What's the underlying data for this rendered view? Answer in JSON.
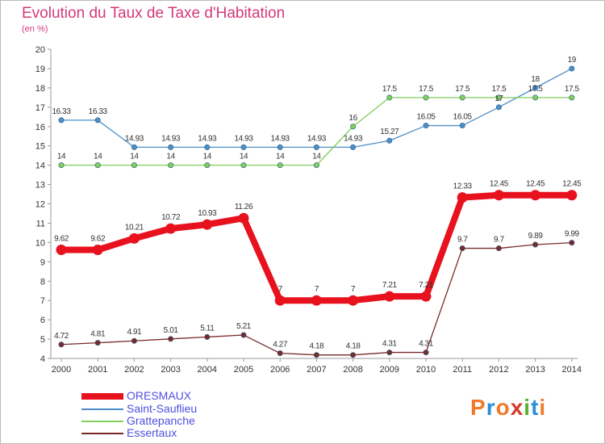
{
  "title": "Evolution du Taux de Taxe d'Habitation",
  "subtitle": "(en %)",
  "logo": {
    "text": "Proxiti",
    "colors": [
      "#f07a2a",
      "#2b8fd6",
      "#f07a2a",
      "#d63a2b",
      "#58b030",
      "#2b8fd6",
      "#f07a2a"
    ]
  },
  "chart_data": {
    "type": "line",
    "title": "Evolution du Taux de Taxe d'Habitation",
    "ylabel": "(en %)",
    "xlabel": "",
    "x": [
      "2000",
      "2001",
      "2002",
      "2003",
      "2004",
      "2005",
      "2006",
      "2007",
      "2008",
      "2009",
      "2010",
      "2011",
      "2012",
      "2013",
      "2014"
    ],
    "ylim": [
      4,
      20
    ],
    "yticks": [
      "4",
      "5",
      "6",
      "7",
      "8",
      "9",
      "10",
      "11",
      "12",
      "13",
      "14",
      "15",
      "16",
      "17",
      "18",
      "19",
      "20"
    ],
    "grid": false,
    "legend_position": "bottom-left",
    "series": [
      {
        "name": "ORESMAUX",
        "color": "#e8121e",
        "values": [
          9.62,
          9.62,
          10.21,
          10.72,
          10.93,
          11.26,
          7,
          7,
          7,
          7.21,
          7.21,
          12.33,
          12.45,
          12.45,
          12.45
        ],
        "labels": [
          "9.62",
          "9.62",
          "10.21",
          "10.72",
          "10.93",
          "11.26",
          "7",
          "7",
          "7",
          "7.21",
          "7.21",
          "12.33",
          "12.45",
          "12.45",
          "12.45"
        ]
      },
      {
        "name": "Saint-Sauflieu",
        "color": "#4c8fc8",
        "values": [
          16.33,
          16.33,
          14.93,
          14.93,
          14.93,
          14.93,
          14.93,
          14.93,
          14.93,
          15.27,
          16.05,
          16.05,
          17,
          18,
          19
        ],
        "labels": [
          "16.33",
          "16.33",
          "14.93",
          "14.93",
          "14.93",
          "14.93",
          "14.93",
          "14.93",
          "14.93",
          "15.27",
          "16.05",
          "16.05",
          "17",
          "18",
          "19"
        ]
      },
      {
        "name": "Grattepanche",
        "color": "#7fcf5a",
        "values": [
          14,
          14,
          14,
          14,
          14,
          14,
          14,
          14,
          16,
          17.5,
          17.5,
          17.5,
          17.5,
          17.5,
          17.5
        ],
        "labels": [
          "14",
          "14",
          "14",
          "14",
          "14",
          "14",
          "14",
          "14",
          "16",
          "17.5",
          "17.5",
          "17.5",
          "17.5",
          "17.5",
          "17.5"
        ]
      },
      {
        "name": "Essertaux",
        "color": "#7a2a2a",
        "values": [
          4.72,
          4.81,
          4.91,
          5.01,
          5.11,
          5.21,
          4.27,
          4.18,
          4.18,
          4.31,
          4.31,
          9.7,
          9.7,
          9.89,
          9.99
        ],
        "labels": [
          "4.72",
          "4.81",
          "4.91",
          "5.01",
          "5.11",
          "5.21",
          "4.27",
          "4.18",
          "4.18",
          "4.31",
          "4.31",
          "9.7",
          "9.7",
          "9.89",
          "9.99"
        ]
      }
    ]
  }
}
